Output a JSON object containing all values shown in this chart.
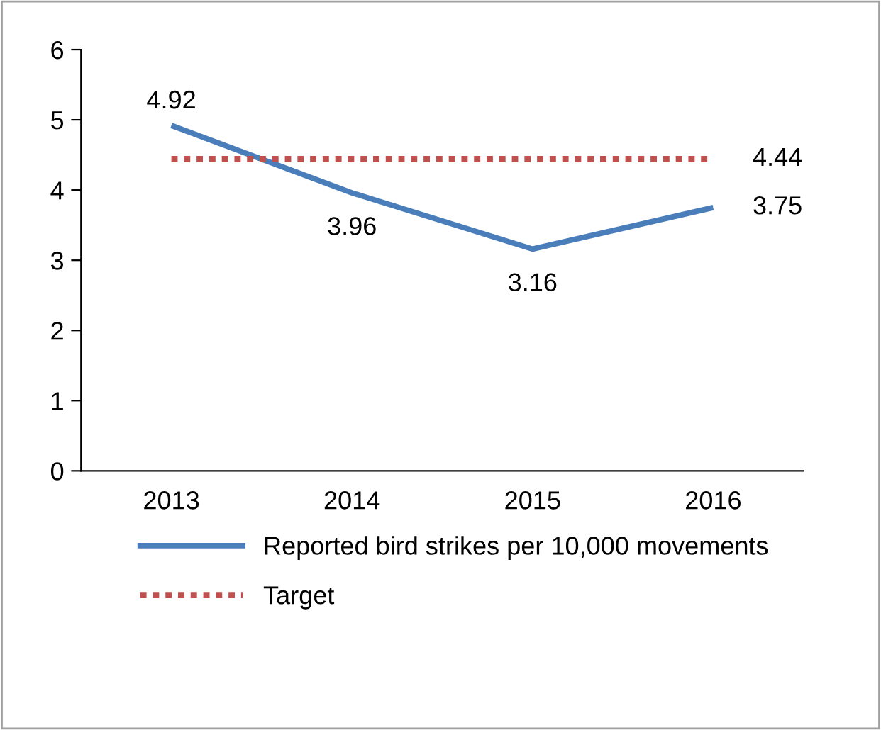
{
  "chart_data": {
    "type": "line",
    "categories": [
      "2013",
      "2014",
      "2015",
      "2016"
    ],
    "series": [
      {
        "name": "Reported bird strikes per 10,000 movements",
        "color": "#4a7ebb",
        "values": [
          4.92,
          3.96,
          3.16,
          3.75
        ],
        "line_style": "solid",
        "value_labels": [
          "4.92",
          "3.96",
          "3.16",
          "3.75"
        ]
      },
      {
        "name": "Target",
        "color": "#c0504d",
        "values": [
          4.44,
          4.44,
          4.44,
          4.44
        ],
        "line_style": "dotted",
        "value_labels": [
          null,
          null,
          null,
          "4.44"
        ]
      }
    ],
    "ylim": [
      0,
      6
    ],
    "yticks": [
      0,
      1,
      2,
      3,
      4,
      5,
      6
    ],
    "grid": false,
    "legend": "bottom",
    "marker": "none"
  }
}
